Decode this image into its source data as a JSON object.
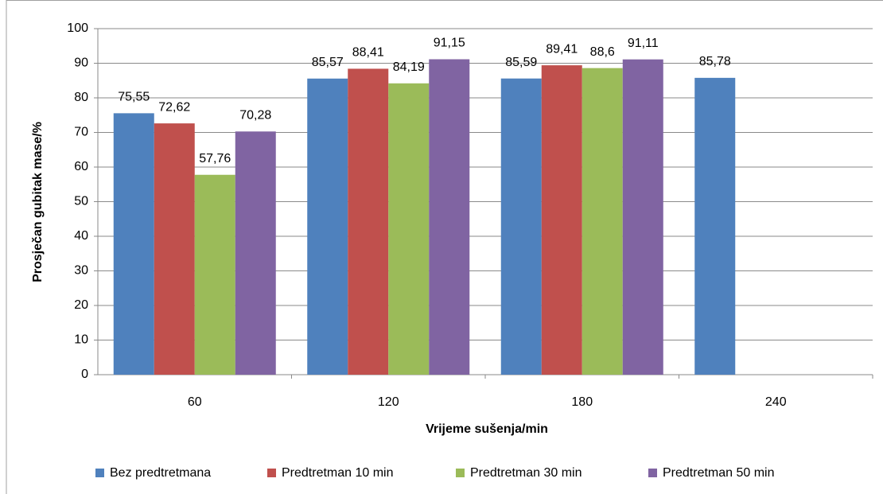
{
  "chart_data": {
    "type": "bar",
    "x_label": "Vrijeme sušenja/min",
    "y_label": "Prosječan gubitak mase/%",
    "categories": [
      "60",
      "120",
      "180",
      "240"
    ],
    "series": [
      {
        "name": "Bez predtretmana",
        "color": "#4f81bd",
        "values": [
          75.55,
          85.57,
          85.59,
          85.78
        ],
        "value_labels": [
          "75,55",
          "85,57",
          "85,59",
          "85,78"
        ]
      },
      {
        "name": "Predtretman 10 min",
        "color": "#c0504d",
        "values": [
          72.62,
          88.41,
          89.41,
          null
        ],
        "value_labels": [
          "72,62",
          "88,41",
          "89,41",
          null
        ]
      },
      {
        "name": "Predtretman 30 min",
        "color": "#9bbb59",
        "values": [
          57.76,
          84.19,
          88.6,
          null
        ],
        "value_labels": [
          "57,76",
          "84,19",
          "88,6",
          null
        ]
      },
      {
        "name": "Predtretman 50 min",
        "color": "#8064a2",
        "values": [
          70.28,
          91.15,
          91.11,
          null
        ],
        "value_labels": [
          "70,28",
          "91,15",
          "91,11",
          null
        ]
      }
    ],
    "ylim": [
      0,
      100
    ],
    "yticks": [
      0,
      10,
      20,
      30,
      40,
      50,
      60,
      70,
      80,
      90,
      100
    ],
    "grid": true,
    "legend": "bottom"
  }
}
